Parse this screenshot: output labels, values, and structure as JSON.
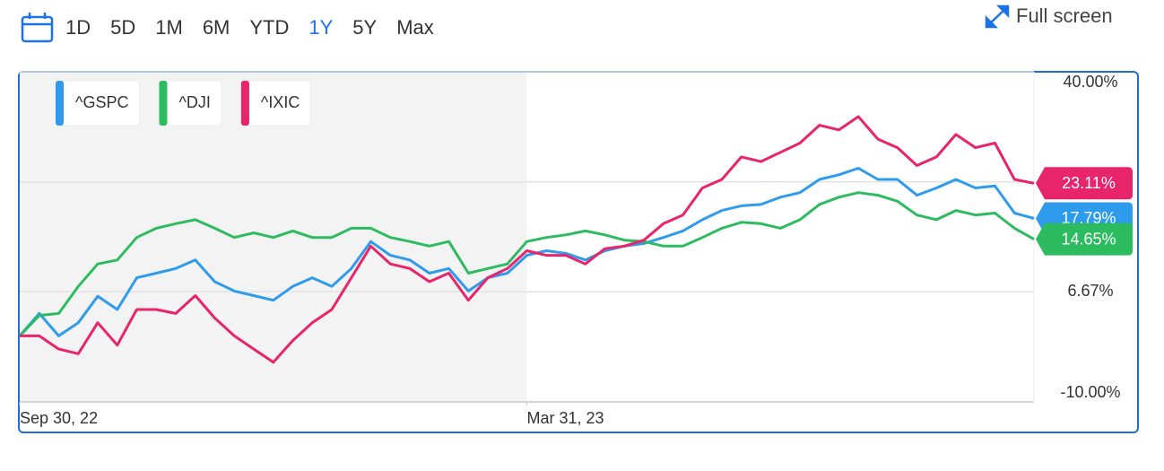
{
  "toolbar": {
    "ranges": [
      "1D",
      "5D",
      "1M",
      "6M",
      "YTD",
      "1Y",
      "5Y",
      "Max"
    ],
    "active_index": 5,
    "fullscreen": "Full screen"
  },
  "chart_data": {
    "type": "line",
    "x": [
      "2022-09-30",
      "2022-10-07",
      "2022-10-14",
      "2022-10-21",
      "2022-10-28",
      "2022-11-04",
      "2022-11-11",
      "2022-11-18",
      "2022-11-25",
      "2022-12-02",
      "2022-12-09",
      "2022-12-16",
      "2022-12-23",
      "2022-12-30",
      "2023-01-06",
      "2023-01-13",
      "2023-01-20",
      "2023-01-27",
      "2023-02-03",
      "2023-02-10",
      "2023-02-17",
      "2023-02-24",
      "2023-03-03",
      "2023-03-10",
      "2023-03-17",
      "2023-03-24",
      "2023-03-31",
      "2023-04-07",
      "2023-04-14",
      "2023-04-21",
      "2023-04-28",
      "2023-05-05",
      "2023-05-12",
      "2023-05-19",
      "2023-05-26",
      "2023-06-02",
      "2023-06-09",
      "2023-06-16",
      "2023-06-23",
      "2023-06-30",
      "2023-07-07",
      "2023-07-14",
      "2023-07-21",
      "2023-07-28",
      "2023-08-04",
      "2023-08-11",
      "2023-08-18",
      "2023-08-25",
      "2023-09-01",
      "2023-09-08",
      "2023-09-15",
      "2023-09-22",
      "2023-09-29"
    ],
    "xlim": [
      "2022-09-30",
      "2023-09-29"
    ],
    "xticks": [
      {
        "value": "2022-09-30",
        "label": "Sep 30, 22"
      },
      {
        "value": "2023-03-31",
        "label": "Mar 31, 23"
      }
    ],
    "shaded_range": [
      "2022-09-30",
      "2023-03-31"
    ],
    "ylim": [
      -10,
      40
    ],
    "yticks": [
      {
        "value": -10,
        "label": "-10.00%"
      },
      {
        "value": 6.67,
        "label": "6.67%"
      },
      {
        "value": 23.33,
        "label": null
      },
      {
        "value": 40,
        "label": "40.00%"
      }
    ],
    "grid": true,
    "series": [
      {
        "name": "^GSPC",
        "color": "#2f9bec",
        "values": [
          0,
          3.4,
          0,
          2,
          6,
          4,
          8.8,
          9.5,
          10.2,
          11.5,
          8.2,
          6.8,
          6.1,
          5.4,
          7.5,
          8.8,
          7.5,
          10.2,
          14.3,
          12.2,
          11.5,
          9.5,
          10.2,
          6.8,
          8.8,
          9.5,
          12.2,
          12.9,
          12.5,
          11.5,
          12.9,
          13.6,
          14,
          14.9,
          15.9,
          17.6,
          19,
          19.7,
          19.9,
          21,
          21.7,
          23.7,
          24.4,
          25.4,
          23.7,
          23.7,
          21.3,
          22.4,
          23.7,
          22.4,
          22.7,
          18.6,
          17.79
        ],
        "value_labels": [
          null,
          null,
          null,
          null,
          null,
          null,
          null,
          null,
          null,
          null,
          null,
          null,
          null,
          null,
          null,
          null,
          null,
          null,
          null,
          null,
          null,
          null,
          null,
          null,
          null,
          null,
          null,
          null,
          null,
          null,
          null,
          null,
          null,
          null,
          null,
          null,
          null,
          null,
          null,
          null,
          null,
          null,
          null,
          null,
          null,
          null,
          null,
          null,
          null,
          null,
          null,
          null,
          "17.79%"
        ]
      },
      {
        "name": "^DJI",
        "color": "#2dbb5f",
        "values": [
          0,
          3.1,
          3.4,
          7.5,
          10.9,
          11.5,
          14.9,
          16.3,
          17,
          17.6,
          16.3,
          14.9,
          15.6,
          14.9,
          15.9,
          14.9,
          14.9,
          16.3,
          16.3,
          14.9,
          14.3,
          13.6,
          14.3,
          9.5,
          10.2,
          10.9,
          14.3,
          14.9,
          15.3,
          15.9,
          15.3,
          14.5,
          14.3,
          13.6,
          13.6,
          14.9,
          16.3,
          17.2,
          17,
          16.3,
          17.6,
          19.9,
          21,
          21.7,
          21.3,
          20.4,
          18.3,
          17.6,
          19,
          18.3,
          18.6,
          16.3,
          14.65
        ],
        "value_labels": [
          null,
          null,
          null,
          null,
          null,
          null,
          null,
          null,
          null,
          null,
          null,
          null,
          null,
          null,
          null,
          null,
          null,
          null,
          null,
          null,
          null,
          null,
          null,
          null,
          null,
          null,
          null,
          null,
          null,
          null,
          null,
          null,
          null,
          null,
          null,
          null,
          null,
          null,
          null,
          null,
          null,
          null,
          null,
          null,
          null,
          null,
          null,
          null,
          null,
          null,
          null,
          null,
          "14.65%"
        ]
      },
      {
        "name": "^IXIC",
        "color": "#e8246b",
        "values": [
          0,
          0,
          -2,
          -2.7,
          2,
          -1.4,
          4,
          4,
          3.4,
          6.1,
          2.7,
          0,
          -2,
          -4,
          -0.7,
          2,
          4,
          8.8,
          13.6,
          10.9,
          10.2,
          8.2,
          9.5,
          5.4,
          8.8,
          10.2,
          12.9,
          12.2,
          12.2,
          10.9,
          13.2,
          13.6,
          14.5,
          17,
          18.3,
          22.4,
          23.7,
          27.1,
          26.4,
          27.8,
          29.2,
          31.9,
          31.2,
          33.2,
          29.8,
          28.5,
          25.8,
          27.1,
          30.5,
          28.5,
          29.2,
          23.7,
          23.11
        ],
        "value_labels": [
          null,
          null,
          null,
          null,
          null,
          null,
          null,
          null,
          null,
          null,
          null,
          null,
          null,
          null,
          null,
          null,
          null,
          null,
          null,
          null,
          null,
          null,
          null,
          null,
          null,
          null,
          null,
          null,
          null,
          null,
          null,
          null,
          null,
          null,
          null,
          null,
          null,
          null,
          null,
          null,
          null,
          null,
          null,
          null,
          null,
          null,
          null,
          null,
          null,
          null,
          null,
          null,
          "23.11%"
        ]
      }
    ]
  }
}
